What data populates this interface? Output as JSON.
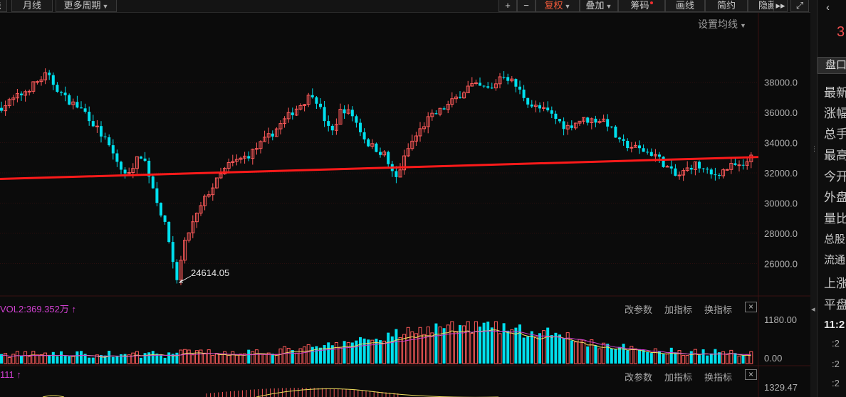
{
  "toolbar": {
    "left_buttons": [
      {
        "label": "线",
        "dropdown": false
      },
      {
        "label": "月线",
        "dropdown": false
      },
      {
        "label": "更多周期",
        "dropdown": true
      }
    ],
    "right_buttons": [
      {
        "label": "+",
        "dropdown": false,
        "active": false
      },
      {
        "label": "−",
        "dropdown": false,
        "active": false
      },
      {
        "label": "复权",
        "dropdown": true,
        "active": true
      },
      {
        "label": "叠加",
        "dropdown": true,
        "active": false
      },
      {
        "label": "筹码",
        "dropdown": false,
        "active": false,
        "dot": true
      },
      {
        "label": "画线",
        "dropdown": false,
        "active": false
      },
      {
        "label": "简约",
        "dropdown": false,
        "active": false
      },
      {
        "label": "隐藏",
        "dropdown": false,
        "active": false
      }
    ],
    "more_icon": "double-chevron-right-icon",
    "fullscreen_icon": "fullscreen-icon"
  },
  "ma_setting_label": "设置均线",
  "price_chart": {
    "y_ticks": [
      "38000.0",
      "36000.0",
      "34000.0",
      "32000.0",
      "30000.0",
      "28000.0",
      "26000.0"
    ],
    "low_annotation": "24614.05",
    "colors": {
      "up": "#ff5a5a",
      "down": "#00e0ee",
      "trendline": "#ff1a1a",
      "background": "#0b0b0b"
    }
  },
  "volume_panel": {
    "title": "VOL2:369.352万",
    "up_arrow": "↑",
    "buttons": [
      "改参数",
      "加指标",
      "换指标"
    ],
    "close": "×",
    "y_ticks": [
      "1180.00",
      "0.00"
    ]
  },
  "indicator_panel": {
    "title": "111",
    "up_arrow": "↑",
    "buttons": [
      "改参数",
      "加指标",
      "换指标"
    ],
    "close": "×",
    "y_ticks": [
      "1329.47"
    ]
  },
  "side_panel": {
    "back_icon": "‹",
    "price_fragment": "3",
    "tab": "盘口",
    "rows": [
      "最新",
      "涨幅",
      "总手",
      "最高",
      "今开",
      "外盘",
      "量比",
      "总股",
      "流通",
      "上涨",
      "平盘"
    ],
    "time": "11:2",
    "time_rows": [
      ":2",
      ":2",
      ":2"
    ]
  }
}
